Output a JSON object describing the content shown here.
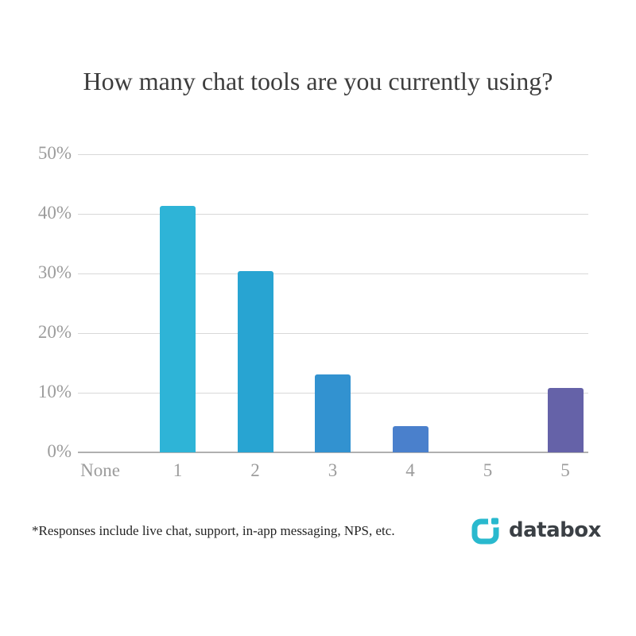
{
  "title": "How many chat tools are you currently using?",
  "footnote": "*Responses include live chat, support, in-app messaging, NPS, etc.",
  "logo": {
    "text": "databox",
    "icon_color": "#29b9ce",
    "text_color": "#3b4045"
  },
  "chart_data": {
    "type": "bar",
    "title": "How many chat tools are you currently using?",
    "categories": [
      "None",
      "1",
      "2",
      "3",
      "4",
      "5",
      "5"
    ],
    "values": [
      0,
      41.3,
      30.4,
      13.1,
      4.4,
      0,
      10.8
    ],
    "bar_colors": [
      "#2cb3d6",
      "#2eb4d7",
      "#28a4d2",
      "#3292d0",
      "#4a80cc",
      "#5a71ba",
      "#6562a8"
    ],
    "xlabel": "",
    "ylabel": "",
    "ylim": [
      0,
      50
    ],
    "yticks": [
      0,
      10,
      20,
      30,
      40,
      50
    ],
    "ytick_labels": [
      "0%",
      "10%",
      "20%",
      "30%",
      "40%",
      "50%"
    ],
    "grid": true,
    "legend": false,
    "gridline_color": "#d8d8d8",
    "axis_line_color": "#b0b0b0",
    "tick_label_color": "#9c9c9c"
  }
}
